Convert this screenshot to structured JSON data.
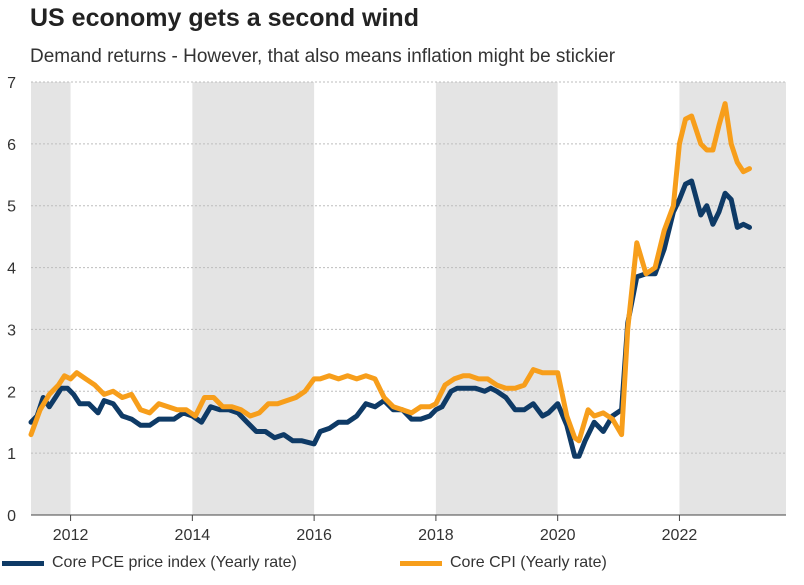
{
  "chart_data": {
    "type": "line",
    "title": "US economy gets a second wind",
    "subtitle": "Demand returns - However, that also means inflation might be stickier",
    "xlabel": "",
    "ylabel": "",
    "xlim": [
      2011.35,
      2023.75
    ],
    "ylim": [
      0,
      7
    ],
    "yticks": [
      "0",
      "1",
      "2",
      "3",
      "4",
      "5",
      "6",
      "7"
    ],
    "xticks": [
      "2012",
      "2014",
      "2016",
      "2018",
      "2020",
      "2022"
    ],
    "grid": true,
    "shaded_bands": [
      [
        2011.35,
        2012
      ],
      [
        2014,
        2016
      ],
      [
        2018,
        2020
      ],
      [
        2022,
        2023.75
      ]
    ],
    "colors": {
      "band": "#e4e4e4",
      "grid": "#bdbdbd",
      "axis": "#444444"
    },
    "series": [
      {
        "name": "Core PCE price index (Yearly rate)",
        "color": "#0e3a66",
        "x": [
          2011.35,
          2011.45,
          2011.55,
          2011.65,
          2011.75,
          2011.85,
          2011.95,
          2012.05,
          2012.15,
          2012.3,
          2012.45,
          2012.55,
          2012.7,
          2012.85,
          2013.0,
          2013.15,
          2013.3,
          2013.45,
          2013.55,
          2013.7,
          2013.85,
          2014.0,
          2014.15,
          2014.3,
          2014.45,
          2014.6,
          2014.75,
          2014.9,
          2015.05,
          2015.2,
          2015.35,
          2015.5,
          2015.65,
          2015.8,
          2016.0,
          2016.1,
          2016.25,
          2016.4,
          2016.55,
          2016.7,
          2016.85,
          2017.0,
          2017.15,
          2017.3,
          2017.45,
          2017.6,
          2017.75,
          2017.9,
          2018.0,
          2018.1,
          2018.25,
          2018.35,
          2018.5,
          2018.65,
          2018.8,
          2018.9,
          2019.0,
          2019.15,
          2019.3,
          2019.45,
          2019.6,
          2019.75,
          2019.85,
          2020.0,
          2020.15,
          2020.28,
          2020.35,
          2020.45,
          2020.6,
          2020.75,
          2020.9,
          2021.05,
          2021.15,
          2021.3,
          2021.45,
          2021.6,
          2021.75,
          2021.9,
          2022.0,
          2022.1,
          2022.2,
          2022.35,
          2022.45,
          2022.55,
          2022.65,
          2022.75,
          2022.85,
          2022.95,
          2023.05,
          2023.15
        ],
        "y": [
          1.5,
          1.6,
          1.9,
          1.75,
          1.9,
          2.05,
          2.05,
          1.95,
          1.8,
          1.8,
          1.65,
          1.85,
          1.8,
          1.6,
          1.55,
          1.45,
          1.45,
          1.55,
          1.55,
          1.55,
          1.65,
          1.6,
          1.5,
          1.75,
          1.7,
          1.7,
          1.65,
          1.5,
          1.35,
          1.35,
          1.25,
          1.3,
          1.2,
          1.2,
          1.15,
          1.35,
          1.4,
          1.5,
          1.5,
          1.6,
          1.8,
          1.75,
          1.85,
          1.7,
          1.7,
          1.55,
          1.55,
          1.6,
          1.7,
          1.75,
          2.0,
          2.05,
          2.05,
          2.05,
          2.0,
          2.05,
          2.0,
          1.9,
          1.7,
          1.7,
          1.8,
          1.6,
          1.65,
          1.8,
          1.45,
          0.95,
          0.95,
          1.2,
          1.5,
          1.35,
          1.6,
          1.7,
          3.1,
          3.85,
          3.9,
          3.9,
          4.3,
          4.9,
          5.1,
          5.35,
          5.4,
          4.85,
          5.0,
          4.7,
          4.9,
          5.2,
          5.1,
          4.65,
          4.7,
          4.65
        ]
      },
      {
        "name": "Core CPI (Yearly rate)",
        "color": "#f79e1b",
        "x": [
          2011.35,
          2011.5,
          2011.65,
          2011.8,
          2011.9,
          2012.0,
          2012.1,
          2012.25,
          2012.4,
          2012.55,
          2012.7,
          2012.85,
          2013.0,
          2013.15,
          2013.3,
          2013.45,
          2013.6,
          2013.75,
          2013.9,
          2014.05,
          2014.2,
          2014.35,
          2014.5,
          2014.65,
          2014.8,
          2014.95,
          2015.1,
          2015.25,
          2015.4,
          2015.55,
          2015.7,
          2015.85,
          2016.0,
          2016.1,
          2016.25,
          2016.4,
          2016.55,
          2016.7,
          2016.85,
          2017.0,
          2017.15,
          2017.3,
          2017.45,
          2017.6,
          2017.75,
          2017.9,
          2018.0,
          2018.15,
          2018.3,
          2018.45,
          2018.55,
          2018.7,
          2018.85,
          2019.0,
          2019.15,
          2019.3,
          2019.45,
          2019.6,
          2019.75,
          2019.9,
          2020.0,
          2020.15,
          2020.28,
          2020.35,
          2020.5,
          2020.6,
          2020.75,
          2020.9,
          2021.05,
          2021.15,
          2021.3,
          2021.45,
          2021.6,
          2021.75,
          2021.9,
          2022.0,
          2022.1,
          2022.2,
          2022.35,
          2022.45,
          2022.55,
          2022.65,
          2022.75,
          2022.85,
          2022.95,
          2023.05,
          2023.15
        ],
        "y": [
          1.3,
          1.7,
          1.95,
          2.1,
          2.25,
          2.2,
          2.3,
          2.2,
          2.1,
          1.95,
          2.0,
          1.9,
          1.95,
          1.7,
          1.65,
          1.8,
          1.75,
          1.7,
          1.7,
          1.6,
          1.9,
          1.9,
          1.75,
          1.75,
          1.7,
          1.6,
          1.65,
          1.8,
          1.8,
          1.85,
          1.9,
          2.0,
          2.2,
          2.2,
          2.25,
          2.2,
          2.25,
          2.2,
          2.25,
          2.2,
          1.9,
          1.75,
          1.7,
          1.65,
          1.75,
          1.75,
          1.8,
          2.1,
          2.2,
          2.25,
          2.25,
          2.2,
          2.2,
          2.1,
          2.05,
          2.05,
          2.1,
          2.35,
          2.3,
          2.3,
          2.3,
          1.6,
          1.25,
          1.2,
          1.7,
          1.6,
          1.65,
          1.55,
          1.3,
          3.0,
          4.4,
          3.9,
          4.0,
          4.6,
          5.0,
          6.0,
          6.4,
          6.45,
          6.0,
          5.9,
          5.9,
          6.3,
          6.65,
          6.0,
          5.7,
          5.55,
          5.6
        ]
      }
    ],
    "legend": [
      {
        "label": "Core PCE price index (Yearly rate)",
        "color": "#0e3a66"
      },
      {
        "label": "Core CPI (Yearly rate)",
        "color": "#f79e1b"
      }
    ],
    "legend_position": "bottom"
  }
}
